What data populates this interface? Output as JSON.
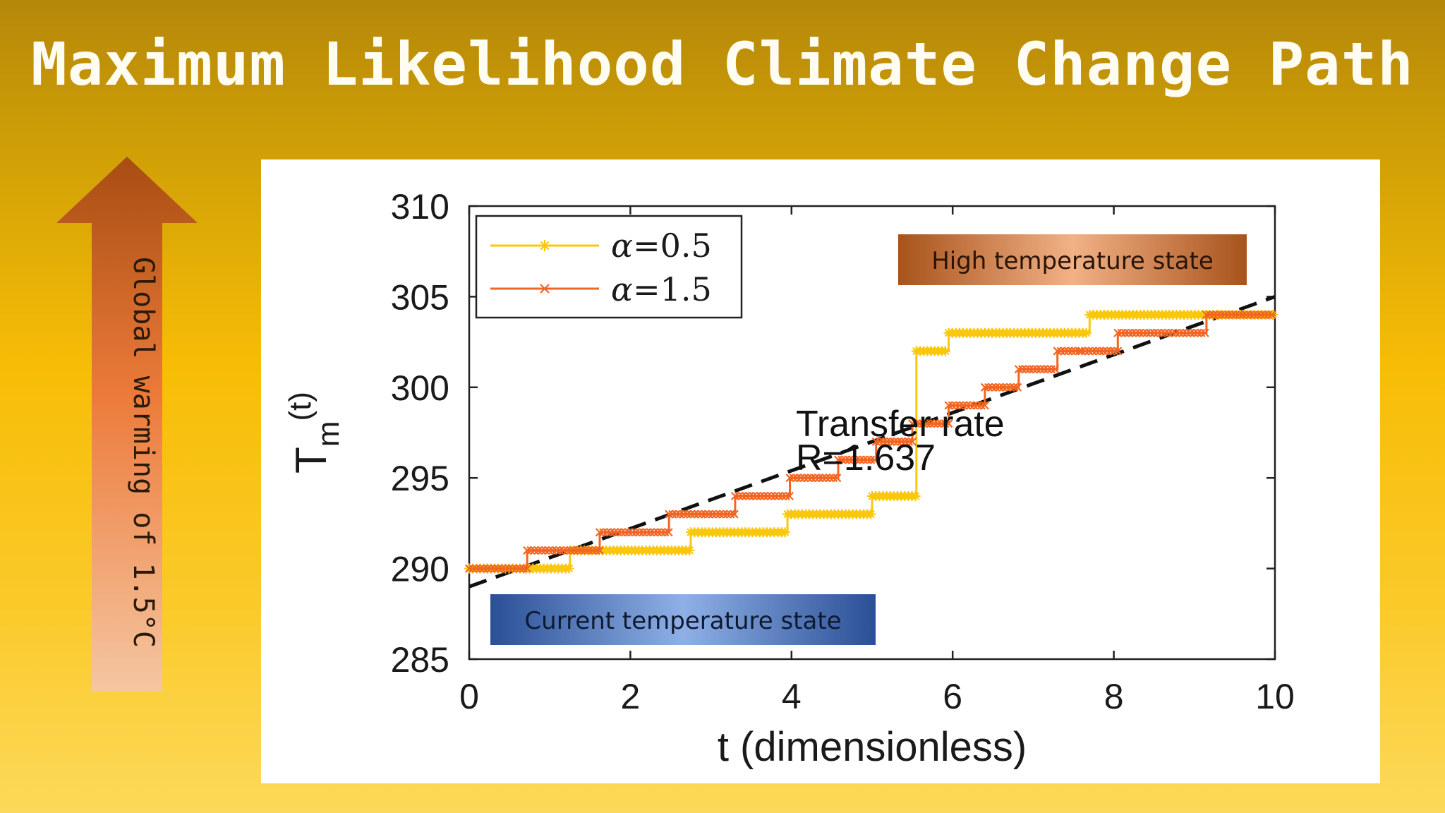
{
  "slide": {
    "title": "Maximum Likelihood Climate Change Path",
    "arrow_label": "Global warming of 1.5°C"
  },
  "colors": {
    "alpha_0_5": "#f9c80e",
    "alpha_1_5": "#f26522",
    "trend": "#111111",
    "high_state_box": "#c0561c",
    "current_state_box": "#3361b0"
  },
  "chart_data": {
    "type": "line",
    "xlabel": "t  (dimensionless)",
    "ylabel_main": "T",
    "ylabel_sub": "m",
    "ylabel_suffix": "(t)",
    "xlim": [
      0,
      10
    ],
    "ylim": [
      285,
      310
    ],
    "xticks": [
      0,
      2,
      4,
      6,
      8,
      10
    ],
    "yticks": [
      285,
      290,
      295,
      300,
      305,
      310
    ],
    "grid": false,
    "legend_position": "top-left",
    "series": [
      {
        "name": "α=0.5",
        "legend_alpha": "α",
        "legend_value": "=0.5",
        "marker": "asterisk",
        "color": "#f9c80e",
        "x": [
          0,
          0.7,
          0.7,
          1.25,
          1.25,
          2.75,
          2.75,
          3.95,
          3.95,
          5.0,
          5.0,
          5.55,
          5.55,
          5.95,
          5.95,
          7.7,
          7.7,
          9.3,
          9.3,
          10.0
        ],
        "y": [
          290,
          290,
          290,
          290,
          291,
          291,
          292,
          292,
          293,
          293,
          294,
          294,
          302,
          302,
          303,
          303,
          304,
          304,
          304,
          304
        ]
      },
      {
        "name": "α=1.5",
        "legend_alpha": "α",
        "legend_value": "=1.5",
        "marker": "cross",
        "color": "#f26522",
        "x": [
          0,
          0.72,
          0.72,
          1.62,
          1.62,
          2.48,
          2.48,
          3.3,
          3.3,
          3.98,
          3.98,
          4.58,
          4.58,
          5.05,
          5.05,
          5.5,
          5.5,
          5.95,
          5.95,
          6.4,
          6.4,
          6.82,
          6.82,
          7.3,
          7.3,
          7.6,
          7.6,
          8.05,
          8.05,
          9.15,
          9.15,
          10.0
        ],
        "y": [
          290,
          290,
          291,
          291,
          292,
          292,
          293,
          293,
          294,
          294,
          295,
          295,
          296,
          296,
          297,
          297,
          298,
          298,
          299,
          299,
          300,
          300,
          301,
          301,
          302,
          302,
          302,
          302,
          303,
          303,
          304,
          304
        ]
      }
    ],
    "trend_line": {
      "style": "dashed",
      "x": [
        0,
        10
      ],
      "y": [
        289,
        305
      ]
    },
    "annotations": {
      "transfer_rate_label": "Transfer rate",
      "rate_value": "R=1.637",
      "high_state": "High temperature state",
      "current_state": "Current temperature state"
    }
  }
}
